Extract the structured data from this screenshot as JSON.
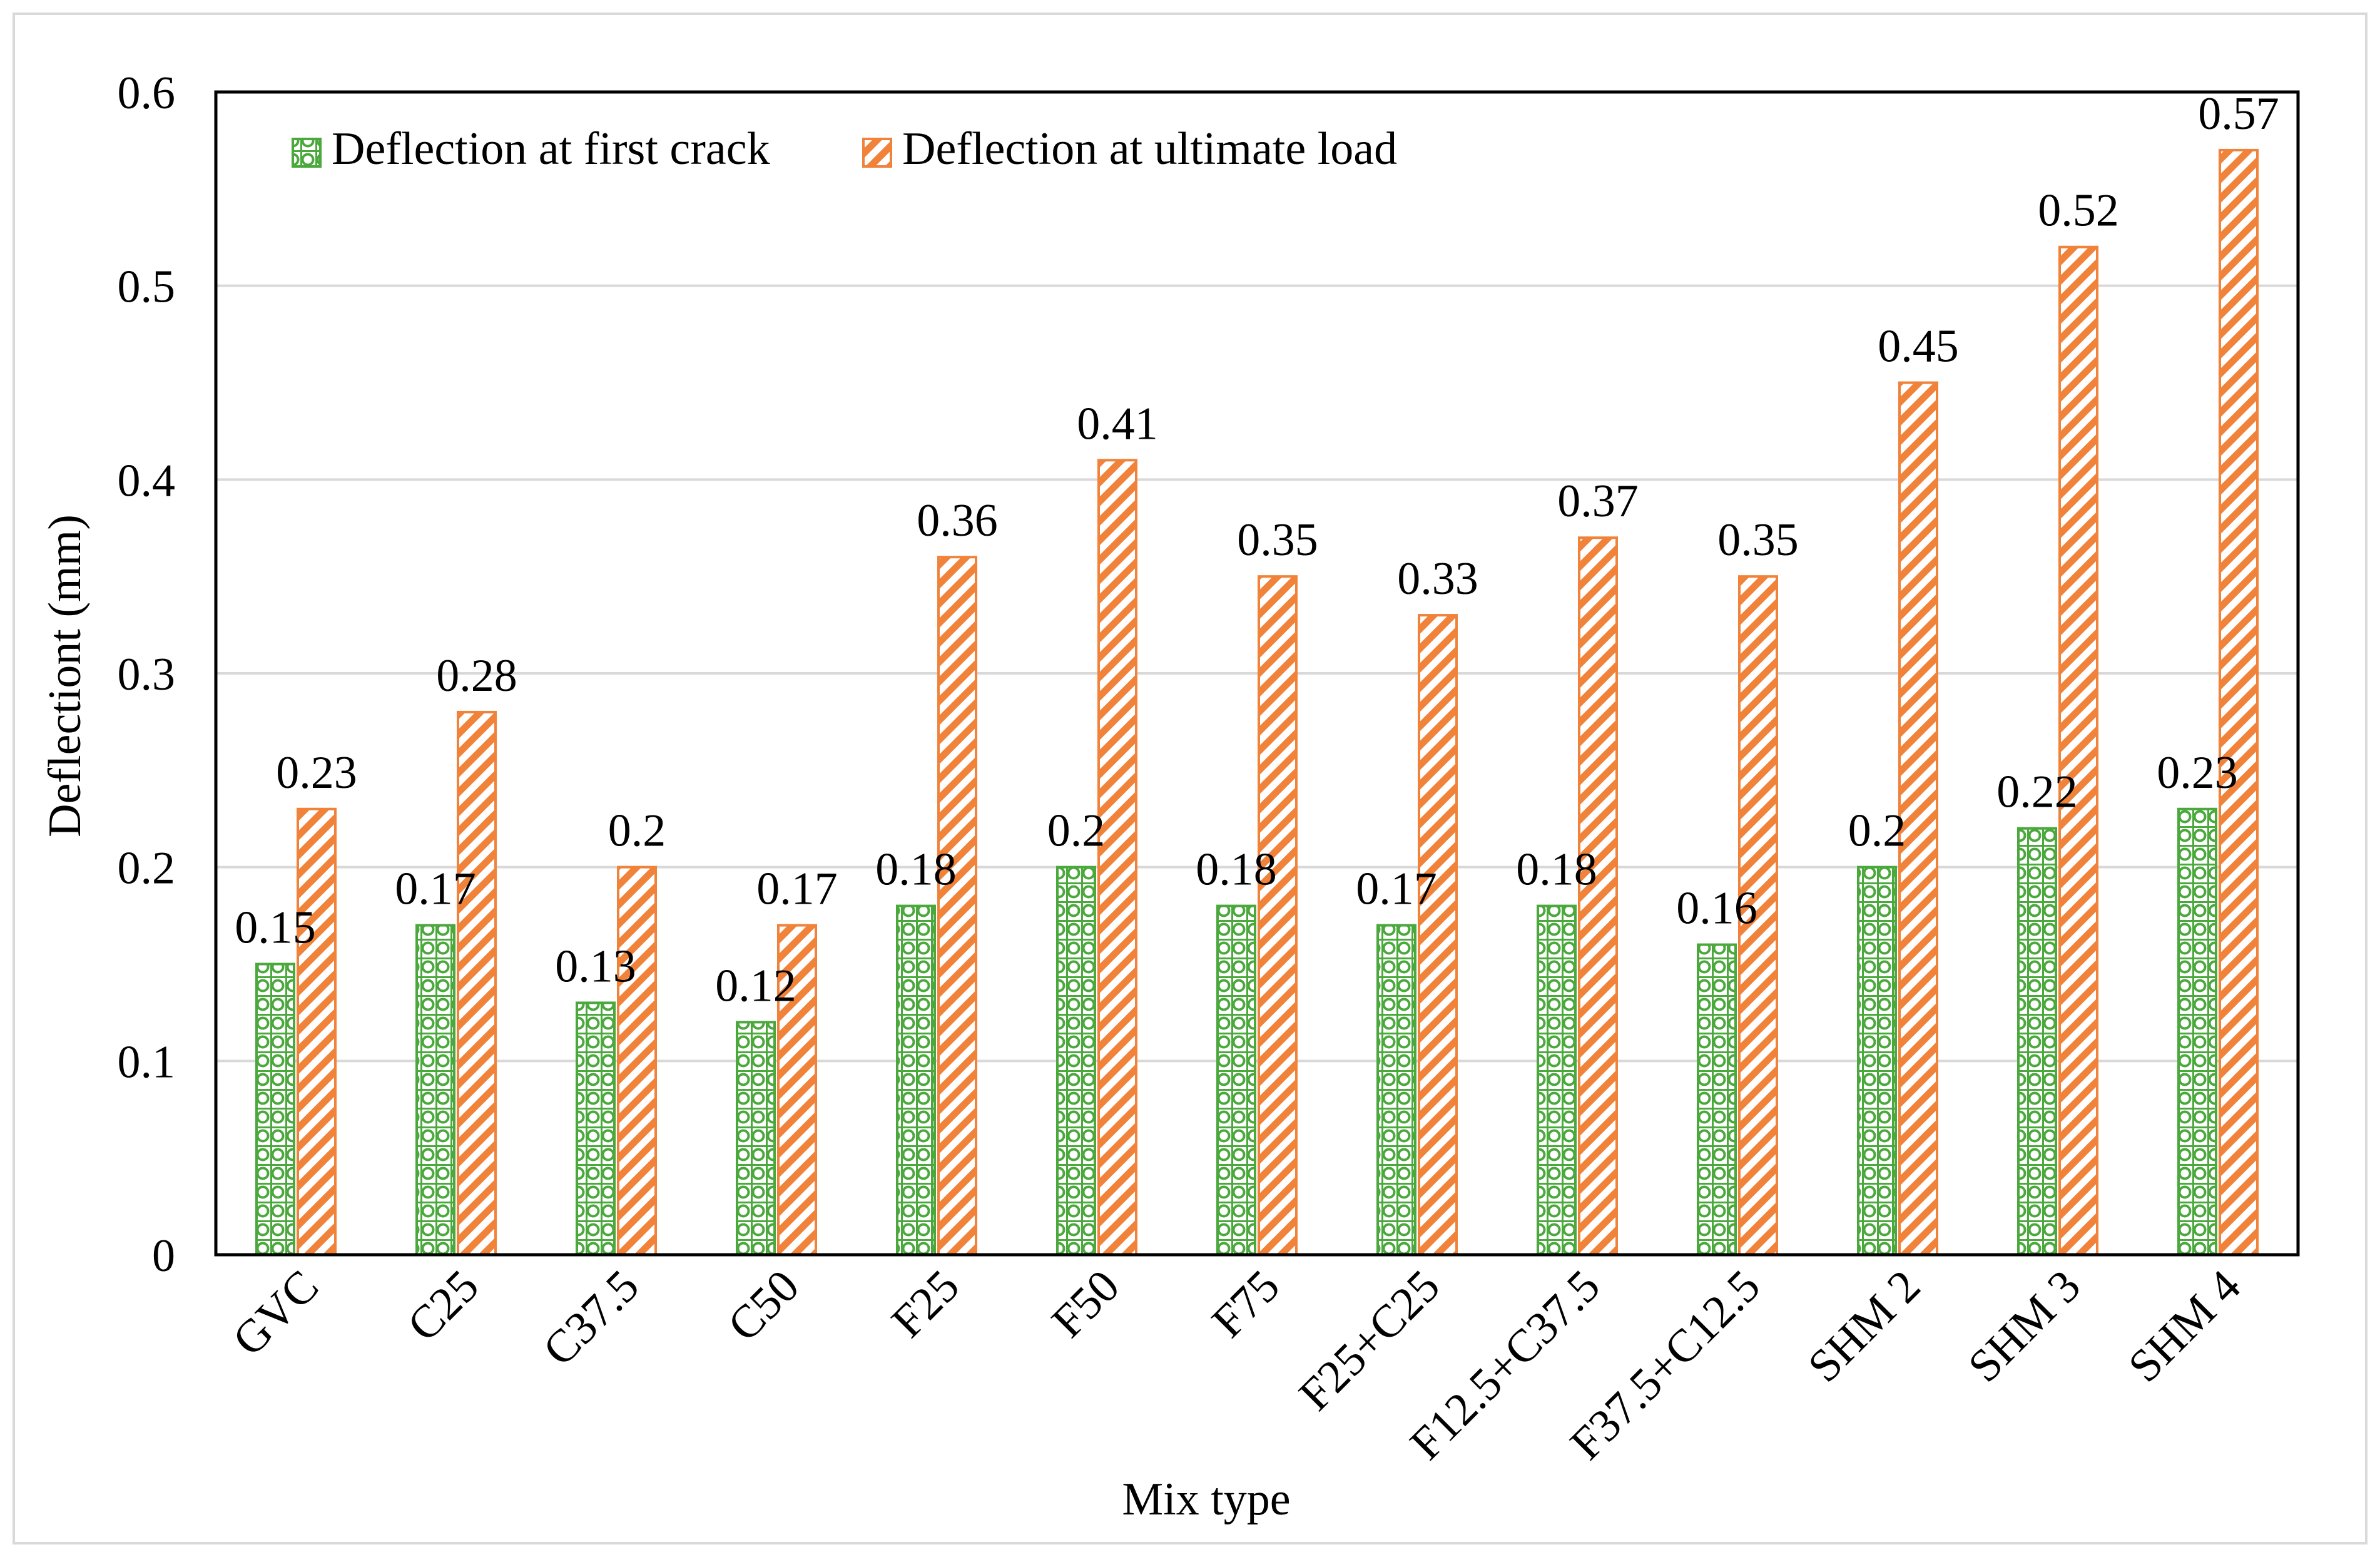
{
  "chart_data": {
    "type": "bar",
    "title": "",
    "xlabel": "Mix type",
    "ylabel": "Deflectiont (mm)",
    "ylim": [
      0,
      0.6
    ],
    "yticks": [
      "0",
      "0.1",
      "0.2",
      "0.3",
      "0.4",
      "0.5",
      "0.6"
    ],
    "grid": true,
    "legend_position": "top-left",
    "categories": [
      "GVC",
      "C25",
      "C37.5",
      "C50",
      "F25",
      "F50",
      "F75",
      "F25+C25",
      "F12.5+C37.5",
      "F37.5+C12.5",
      "SHM 2",
      "SHM 3",
      "SHM 4"
    ],
    "series": [
      {
        "name": "Deflection at first crack",
        "values": [
          0.15,
          0.17,
          0.13,
          0.12,
          0.18,
          0.2,
          0.18,
          0.17,
          0.18,
          0.16,
          0.2,
          0.22,
          0.23
        ],
        "labels": [
          "0.15",
          "0.17",
          "0.13",
          "0.12",
          "0.18",
          "0.2",
          "0.18",
          "0.17",
          "0.18",
          "0.16",
          "0.2",
          "0.22",
          "0.23"
        ],
        "color": "#4aa83c",
        "pattern": "dotted-circles"
      },
      {
        "name": "Deflection at ultimate load",
        "values": [
          0.23,
          0.28,
          0.2,
          0.17,
          0.36,
          0.41,
          0.35,
          0.33,
          0.37,
          0.35,
          0.45,
          0.52,
          0.57
        ],
        "labels": [
          "0.23",
          "0.28",
          "0.2",
          "0.17",
          "0.36",
          "0.41",
          "0.35",
          "0.33",
          "0.37",
          "0.35",
          "0.45",
          "0.52",
          "0.57"
        ],
        "color": "#f0823a",
        "pattern": "diagonal-stripes"
      }
    ]
  }
}
